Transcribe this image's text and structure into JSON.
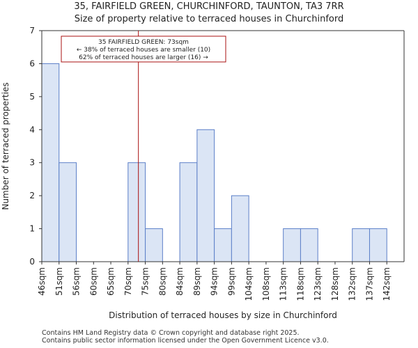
{
  "chart_data": {
    "type": "bar",
    "title": "35, FAIRFIELD GREEN, CHURCHINFORD, TAUNTON, TA3 7RR",
    "subtitle": "Size of property relative to terraced houses in Churchinford",
    "xlabel": "Distribution of terraced houses by size in Churchinford",
    "ylabel": "Number of terraced properties",
    "categories": [
      "46sqm",
      "51sqm",
      "56sqm",
      "60sqm",
      "65sqm",
      "70sqm",
      "75sqm",
      "80sqm",
      "84sqm",
      "89sqm",
      "94sqm",
      "99sqm",
      "104sqm",
      "108sqm",
      "113sqm",
      "118sqm",
      "123sqm",
      "128sqm",
      "132sqm",
      "137sqm",
      "142sqm"
    ],
    "values": [
      6,
      3,
      0,
      0,
      0,
      3,
      1,
      0,
      3,
      4,
      1,
      2,
      0,
      0,
      1,
      1,
      0,
      0,
      1,
      1,
      0
    ],
    "ylim": [
      0,
      7
    ],
    "yticks": [
      "0",
      "1",
      "2",
      "3",
      "4",
      "5",
      "6",
      "7"
    ],
    "marker_value_index": 5.6,
    "annotation": {
      "line1": "35 FAIRFIELD GREEN: 73sqm",
      "line2": "← 38% of terraced houses are smaller (10)",
      "line3": "62% of terraced houses are larger (16) →"
    },
    "colors": {
      "bar_fill": "#dbe5f5",
      "bar_stroke": "#5b7fc8",
      "marker": "#aa1111",
      "annot_border": "#aa1111"
    }
  },
  "footer": {
    "line1": "Contains HM Land Registry data © Crown copyright and database right 2025.",
    "line2": "Contains public sector information licensed under the Open Government Licence v3.0."
  }
}
